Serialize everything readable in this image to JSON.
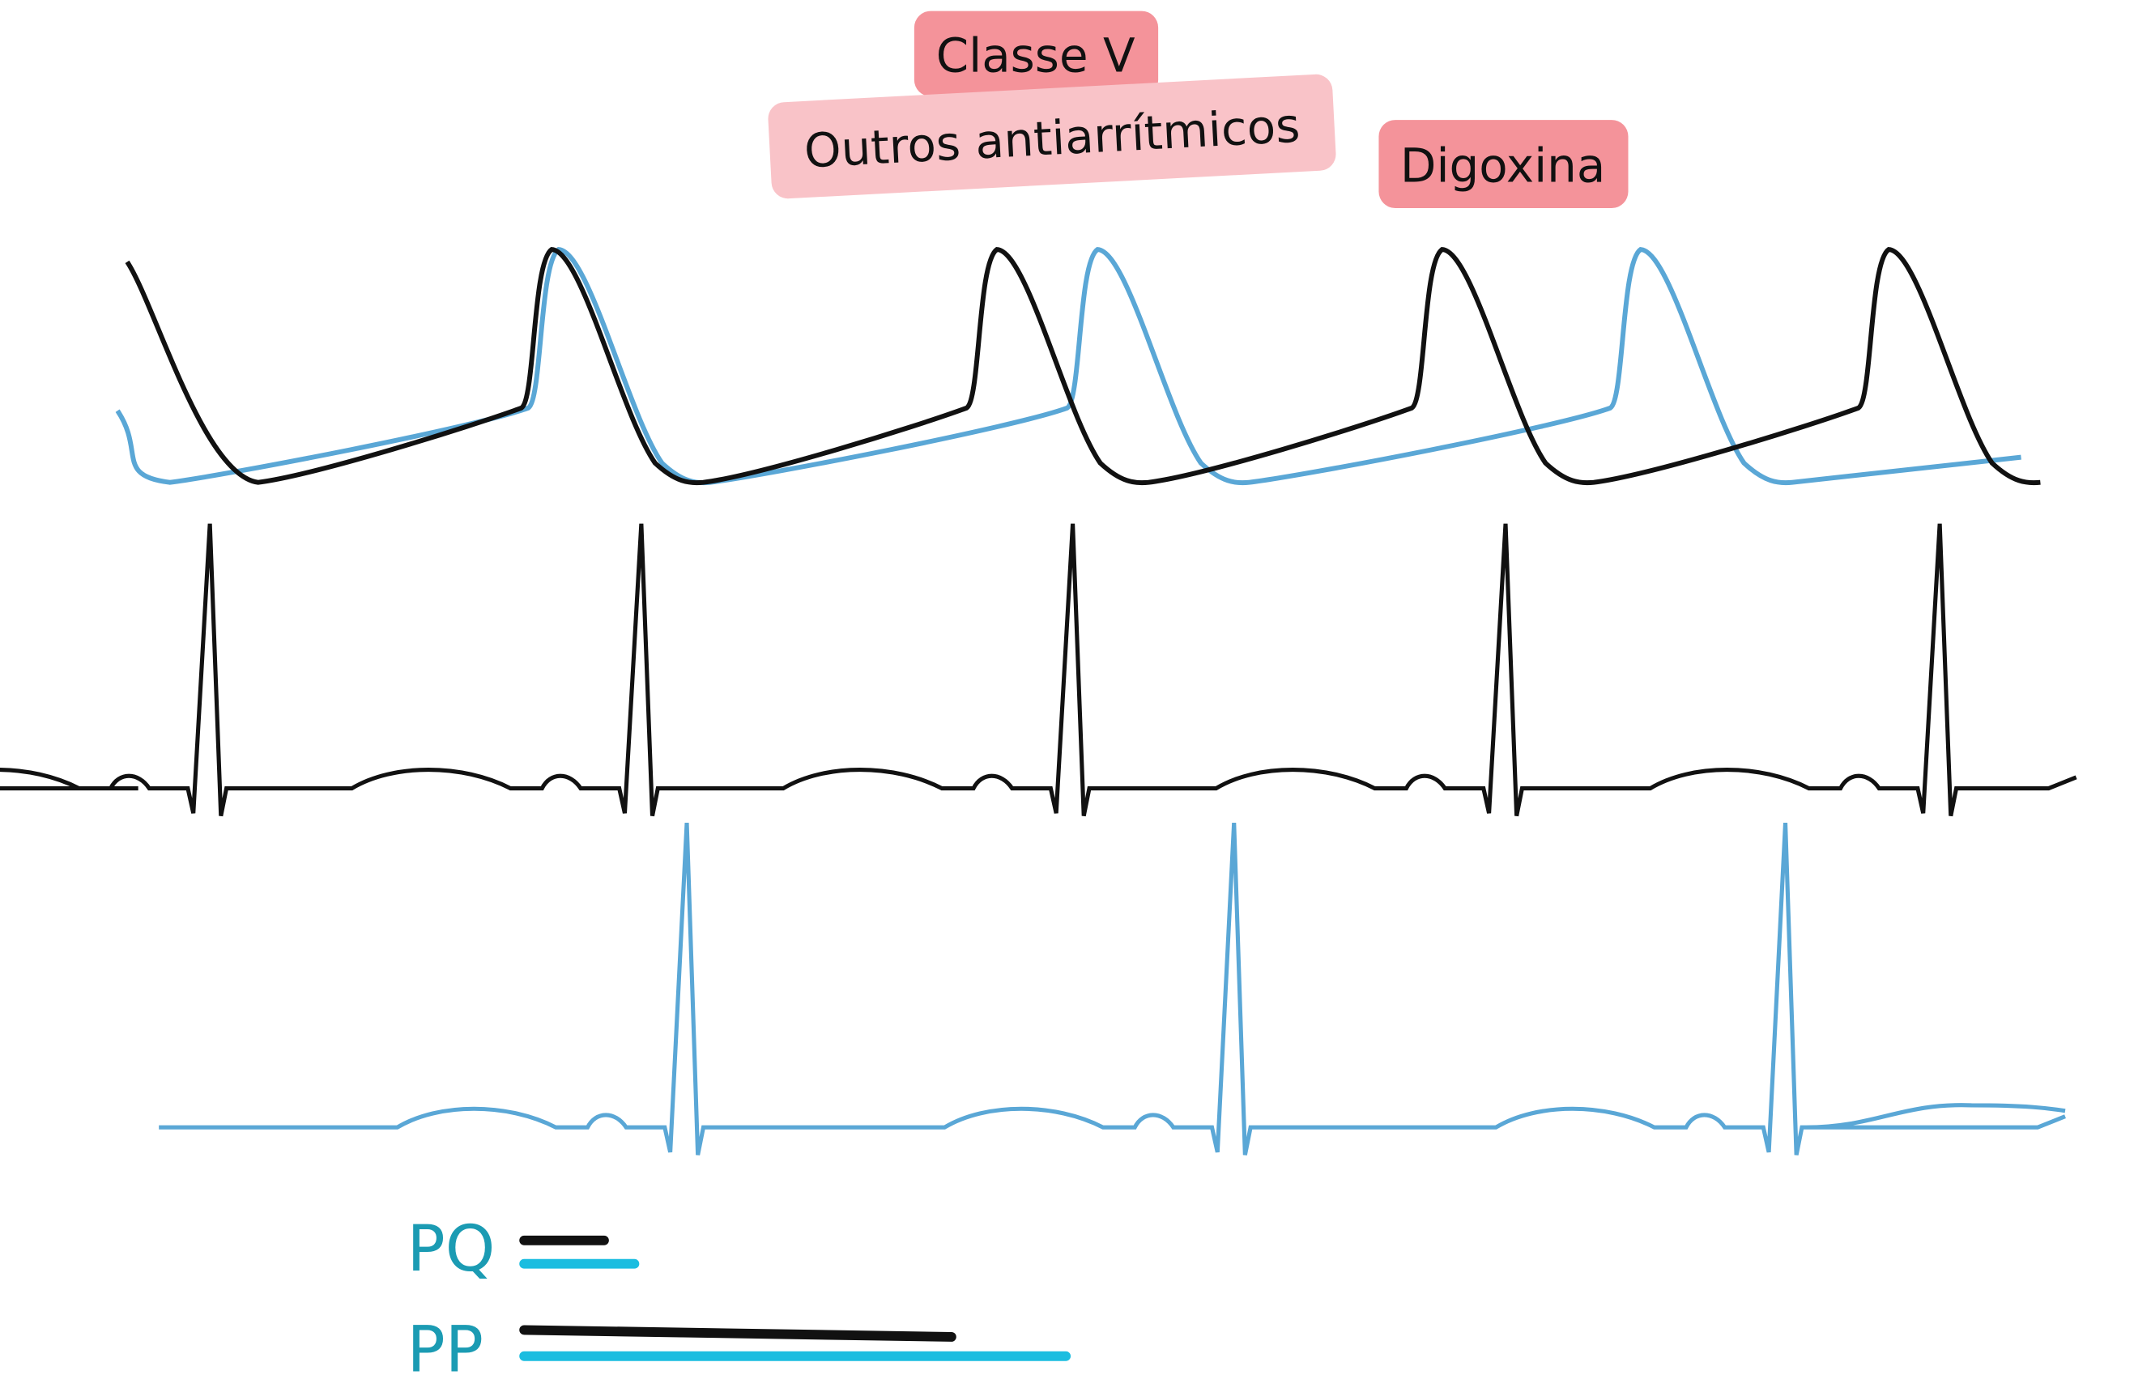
{
  "labels": {
    "class_v": "Classe V",
    "other": "Outros antiarrítmicos",
    "digoxin": "Digoxina"
  },
  "legend": {
    "pq": "PQ",
    "pp": "PP"
  }
}
